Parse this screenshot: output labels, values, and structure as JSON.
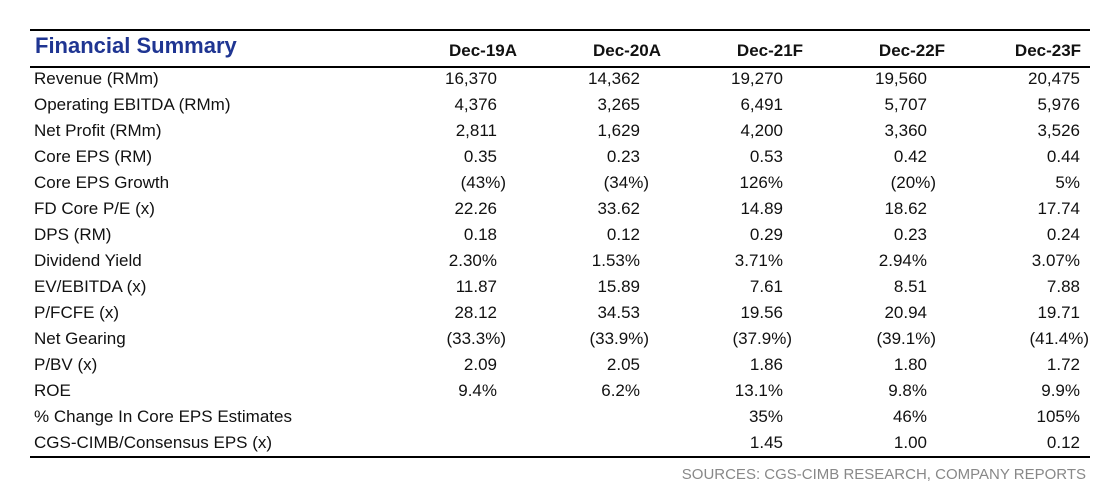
{
  "header": {
    "title": "Financial Summary",
    "columns": [
      "Dec-19A",
      "Dec-20A",
      "Dec-21F",
      "Dec-22F",
      "Dec-23F"
    ]
  },
  "table": {
    "rows": [
      [
        "Revenue (RMm)",
        "16,370",
        "14,362",
        "19,270",
        "19,560",
        "20,475"
      ],
      [
        "Operating EBITDA (RMm)",
        "4,376",
        "3,265",
        "6,491",
        "5,707",
        "5,976"
      ],
      [
        "Net Profit (RMm)",
        "2,811",
        "1,629",
        "4,200",
        "3,360",
        "3,526"
      ],
      [
        "Core EPS (RM)",
        "0.35",
        "0.23",
        "0.53",
        "0.42",
        "0.44"
      ],
      [
        "Core EPS Growth",
        "(43%)",
        "(34%)",
        "126%",
        "(20%)",
        "5%"
      ],
      [
        "FD Core P/E (x)",
        "22.26",
        "33.62",
        "14.89",
        "18.62",
        "17.74"
      ],
      [
        "DPS (RM)",
        "0.18",
        "0.12",
        "0.29",
        "0.23",
        "0.24"
      ],
      [
        "Dividend Yield",
        "2.30%",
        "1.53%",
        "3.71%",
        "2.94%",
        "3.07%"
      ],
      [
        "EV/EBITDA (x)",
        "11.87",
        "15.89",
        "7.61",
        "8.51",
        "7.88"
      ],
      [
        "P/FCFE (x)",
        "28.12",
        "34.53",
        "19.56",
        "20.94",
        "19.71"
      ],
      [
        "Net Gearing",
        "(33.3%)",
        "(33.9%)",
        "(37.9%)",
        "(39.1%)",
        "(41.4%)"
      ],
      [
        "P/BV (x)",
        "2.09",
        "2.05",
        "1.86",
        "1.80",
        "1.72"
      ],
      [
        "ROE",
        "9.4%",
        "6.2%",
        "13.1%",
        "9.8%",
        "9.9%"
      ],
      [
        "% Change In Core EPS Estimates",
        null,
        null,
        "35%",
        "46%",
        "105%"
      ],
      [
        "CGS-CIMB/Consensus EPS (x)",
        null,
        null,
        "1.45",
        "1.00",
        "0.12"
      ]
    ]
  },
  "footer": {
    "source": "SOURCES: CGS-CIMB RESEARCH, COMPANY REPORTS"
  }
}
